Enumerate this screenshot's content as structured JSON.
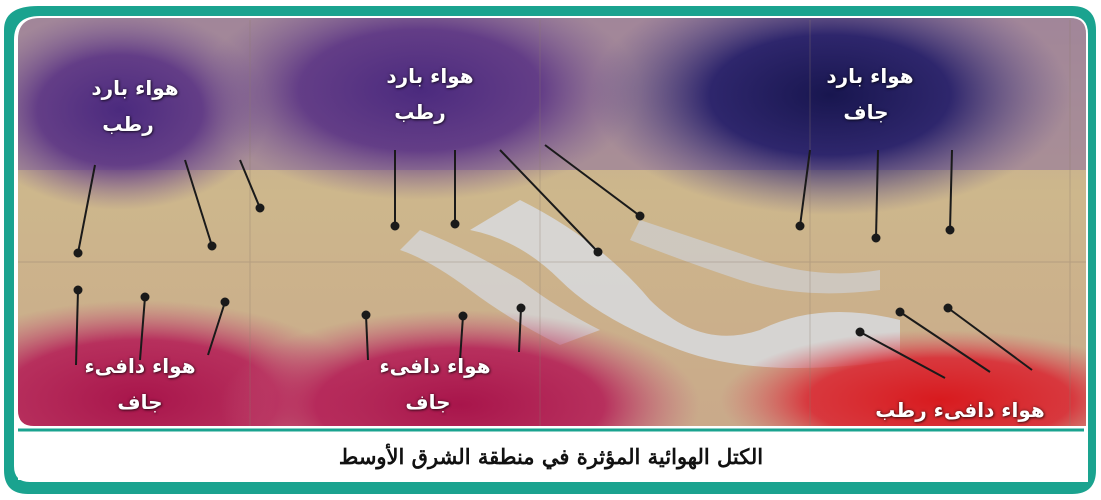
{
  "map": {
    "labels": [
      {
        "line1": "هواء بارد",
        "line2": "رطب"
      },
      {
        "line1": "هواء بارد",
        "line2": "رطب"
      },
      {
        "line1": "هواء بارد",
        "line2": "جاف"
      },
      {
        "line1": "هواء دافىء",
        "line2": "جاف"
      },
      {
        "line1": "هواء دافىء",
        "line2": "جاف"
      },
      {
        "line1": "هواء دافىء رطب",
        "line2": ""
      }
    ],
    "caption": "الكتل الهوائية المؤثرة في منطقة الشرق الأوسط"
  },
  "colors": {
    "frame_border": "#1aa38f",
    "cold_moist": "#5a2f86",
    "cold_dry": "#1f1a5e",
    "warm_dry": "#b0174d",
    "warm_moist": "#d81e24",
    "land": "#c9b58a",
    "sea": "#c8ccd4"
  }
}
